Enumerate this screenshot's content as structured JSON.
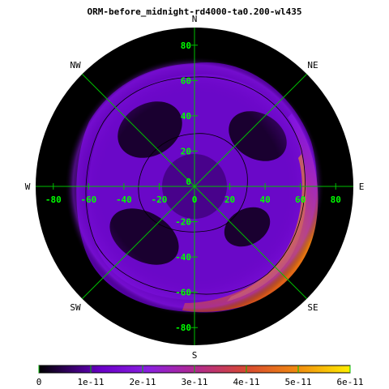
{
  "chart_data": {
    "type": "heatmap",
    "projection": "polar",
    "title": "ORM-before_midnight-rd4000-ta0.200-wl435",
    "compass": {
      "n": "N",
      "ne": "NE",
      "e": "E",
      "se": "SE",
      "s": "S",
      "sw": "SW",
      "w": "W",
      "nw": "NW"
    },
    "x_ticks": [
      "-80",
      "-60",
      "-40",
      "-20",
      "0",
      "20",
      "40",
      "60",
      "80"
    ],
    "y_ticks": [
      "80",
      "60",
      "40",
      "20",
      "0",
      "-20",
      "-40",
      "-60",
      "-80"
    ],
    "axis_range": [
      -90,
      90
    ],
    "colorbar": {
      "range": [
        0,
        6e-11
      ],
      "ticks": [
        "0",
        "1e-11",
        "2e-11",
        "3e-11",
        "4e-11",
        "5e-11",
        "6e-11"
      ],
      "colormap": [
        "#000000",
        "#2a0050",
        "#7000d0",
        "#8c20e0",
        "#c0308c",
        "#e06020",
        "#ffe800"
      ]
    },
    "colors": {
      "background": "#000000",
      "grid": "#00c000",
      "tick_label": "#00ff00",
      "contour": "#000000"
    }
  }
}
